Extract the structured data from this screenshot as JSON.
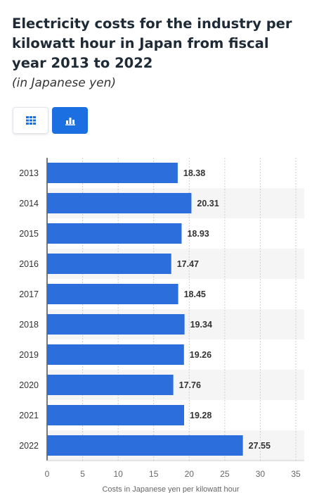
{
  "title": "Electricity costs for the industry per kilowatt hour in Japan from fiscal year 2013 to 2022",
  "subtitle": "(in Japanese yen)",
  "view_buttons": [
    {
      "icon": "table-grid-icon",
      "active": false
    },
    {
      "icon": "bar-chart-icon",
      "active": true
    }
  ],
  "colors": {
    "bar": "#2c6fdc",
    "band": "#f5f5f5",
    "active_button": "#1b6fe0"
  },
  "chart_data": {
    "type": "bar",
    "orientation": "horizontal",
    "categories": [
      "2013",
      "2014",
      "2015",
      "2016",
      "2017",
      "2018",
      "2019",
      "2020",
      "2021",
      "2022"
    ],
    "values": [
      18.38,
      20.31,
      18.93,
      17.47,
      18.45,
      19.34,
      19.26,
      17.76,
      19.28,
      27.55
    ],
    "value_labels": [
      "18.38",
      "20.31",
      "18.93",
      "17.47",
      "18.45",
      "19.34",
      "19.26",
      "17.76",
      "19.28",
      "27.55"
    ],
    "xlabel": "Costs in Japanese yen per kilowatt hour",
    "xlim": [
      0,
      35
    ],
    "xticks": [
      "0",
      "5",
      "10",
      "15",
      "20",
      "25",
      "30",
      "35"
    ],
    "grid": "vertical dashed"
  }
}
